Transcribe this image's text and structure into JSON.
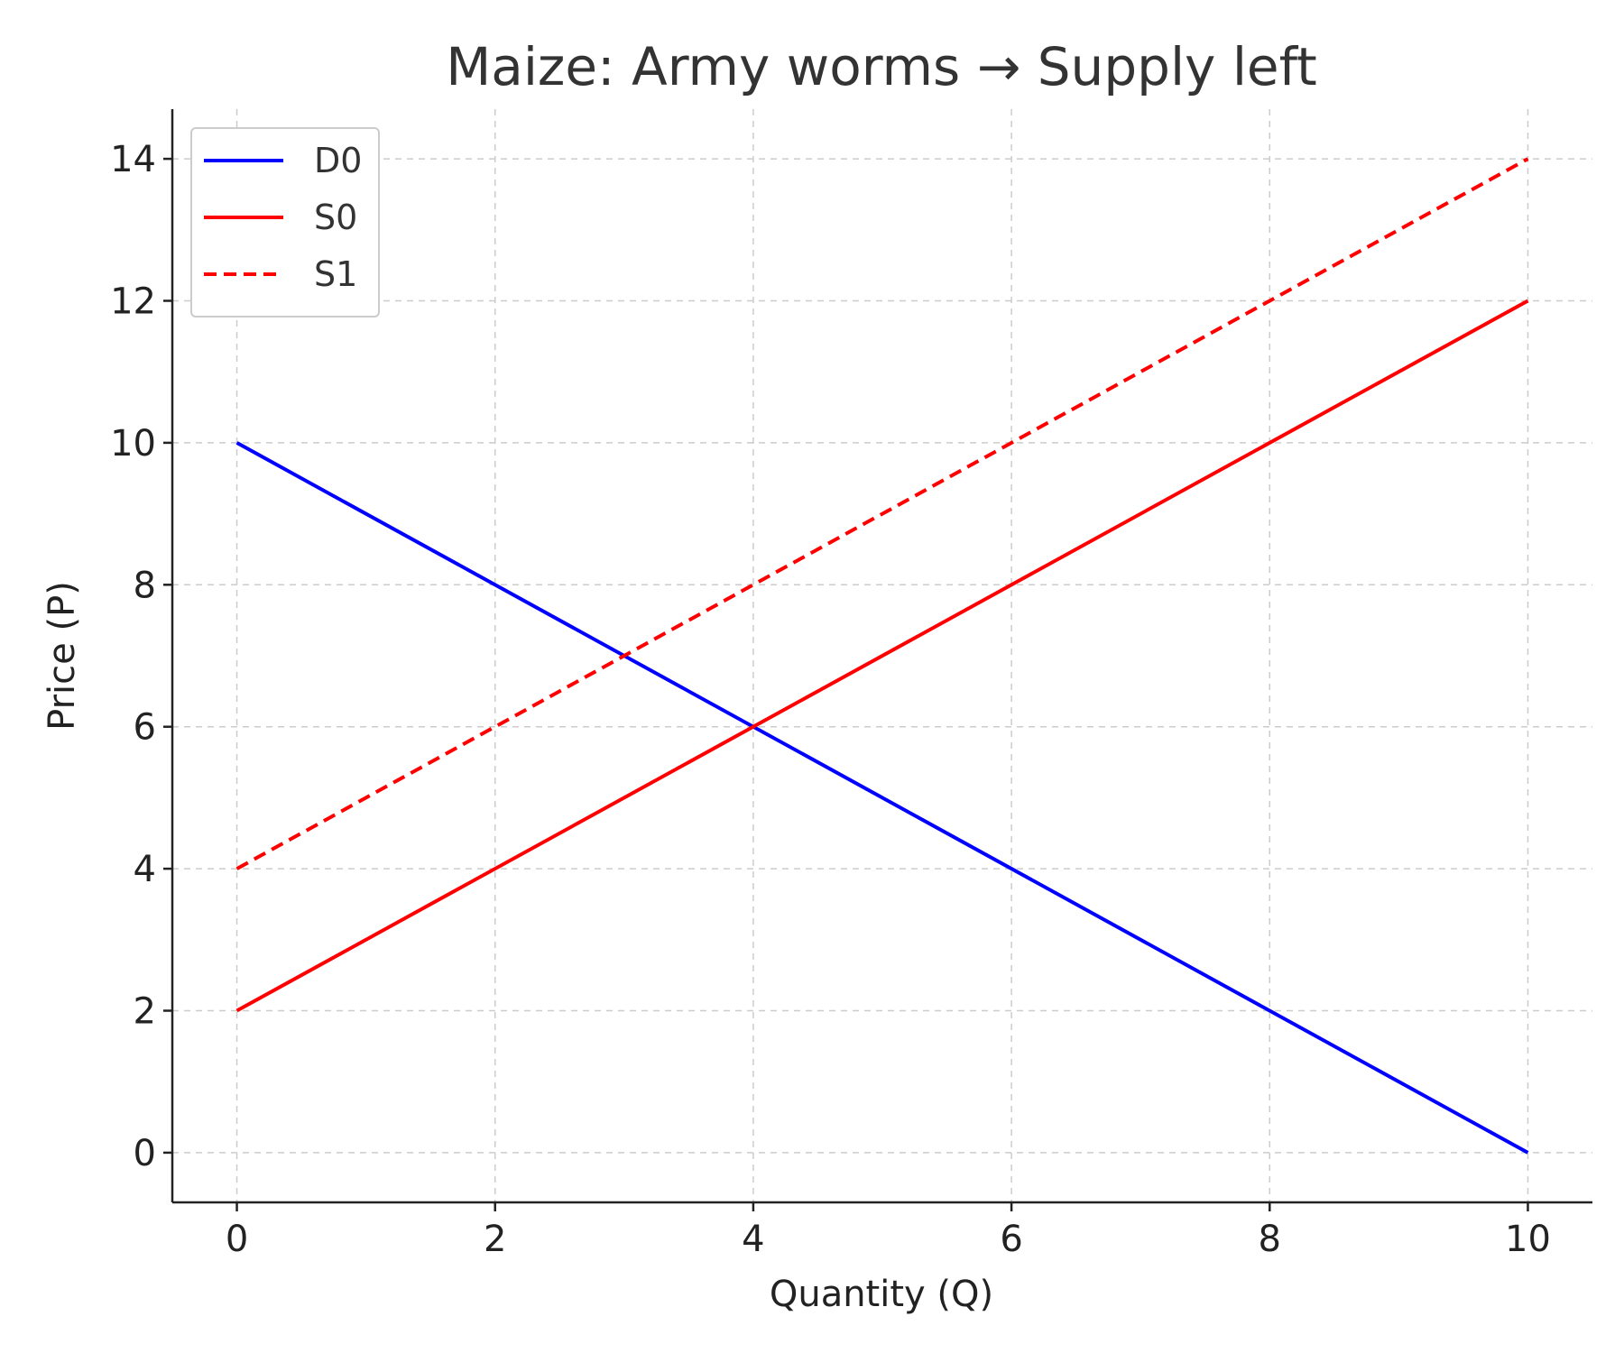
{
  "chart_data": {
    "type": "line",
    "title": "Maize: Army worms → Supply left",
    "xlabel": "Quantity (Q)",
    "ylabel": "Price (P)",
    "xlim": [
      -0.5,
      10.5
    ],
    "ylim": [
      -0.7,
      14.7
    ],
    "xticks": [
      0,
      2,
      4,
      6,
      8,
      10
    ],
    "yticks": [
      0,
      2,
      4,
      6,
      8,
      10,
      12,
      14
    ],
    "grid": true,
    "legend_position": "top-left",
    "series": [
      {
        "name": "D0",
        "color": "#0000ff",
        "style": "solid",
        "x": [
          0,
          10
        ],
        "y": [
          10,
          0
        ]
      },
      {
        "name": "S0",
        "color": "#ff0000",
        "style": "solid",
        "x": [
          0,
          10
        ],
        "y": [
          2,
          12
        ]
      },
      {
        "name": "S1",
        "color": "#ff0000",
        "style": "dashed",
        "x": [
          0,
          10
        ],
        "y": [
          4,
          14
        ]
      }
    ]
  }
}
